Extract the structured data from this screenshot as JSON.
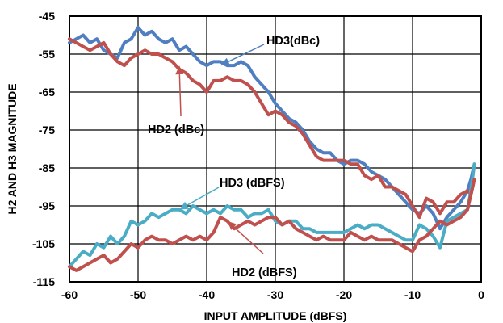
{
  "chart_data": {
    "type": "line",
    "title": "",
    "xlabel": "INPUT AMPLITUDE (dBFS)",
    "ylabel": "H2 AND H3 MAGNITUDE",
    "xlim": [
      -60,
      0
    ],
    "ylim": [
      -115,
      -45
    ],
    "x_ticks": [
      -60,
      -50,
      -40,
      -30,
      -20,
      -10,
      0
    ],
    "x_tick_labels": [
      "-60",
      "-50",
      "-40",
      "-30",
      "-20",
      "-10",
      "0"
    ],
    "y_ticks": [
      -45,
      -55,
      -65,
      -75,
      -85,
      -95,
      -105,
      -115
    ],
    "y_tick_labels": [
      "-45",
      "-55",
      "-65",
      "-75",
      "-85",
      "-95",
      "-105",
      "-115"
    ],
    "grid": true,
    "legend": "none",
    "series": [
      {
        "name": "HD3(dBc)",
        "color": "#4f7fc1",
        "points": [
          [
            -60,
            -52
          ],
          [
            -59,
            -51
          ],
          [
            -58,
            -50
          ],
          [
            -57,
            -52
          ],
          [
            -56,
            -51
          ],
          [
            -55,
            -54
          ],
          [
            -54,
            -55
          ],
          [
            -53,
            -56
          ],
          [
            -52,
            -52
          ],
          [
            -51,
            -51
          ],
          [
            -50,
            -48
          ],
          [
            -49,
            -50
          ],
          [
            -48,
            -49
          ],
          [
            -47,
            -51
          ],
          [
            -46,
            -52
          ],
          [
            -45,
            -51
          ],
          [
            -44,
            -54
          ],
          [
            -43,
            -53
          ],
          [
            -42,
            -55
          ],
          [
            -41,
            -57
          ],
          [
            -40,
            -58
          ],
          [
            -39,
            -57
          ],
          [
            -38,
            -57
          ],
          [
            -37,
            -58
          ],
          [
            -36,
            -58
          ],
          [
            -35,
            -57
          ],
          [
            -34,
            -58
          ],
          [
            -33,
            -61
          ],
          [
            -32,
            -63
          ],
          [
            -31,
            -65
          ],
          [
            -30,
            -68
          ],
          [
            -29,
            -70
          ],
          [
            -28,
            -72
          ],
          [
            -27,
            -73
          ],
          [
            -26,
            -75
          ],
          [
            -25,
            -78
          ],
          [
            -24,
            -80
          ],
          [
            -23,
            -81
          ],
          [
            -22,
            -81
          ],
          [
            -21,
            -83
          ],
          [
            -20,
            -84
          ],
          [
            -19,
            -83
          ],
          [
            -18,
            -83
          ],
          [
            -17,
            -84
          ],
          [
            -16,
            -86
          ],
          [
            -15,
            -87
          ],
          [
            -14,
            -88
          ],
          [
            -13,
            -90
          ],
          [
            -12,
            -92
          ],
          [
            -11,
            -94
          ],
          [
            -10,
            -96
          ],
          [
            -9,
            -97
          ],
          [
            -8,
            -95
          ],
          [
            -7,
            -97
          ],
          [
            -6,
            -101
          ],
          [
            -5,
            -98
          ],
          [
            -4,
            -96
          ],
          [
            -3,
            -94
          ],
          [
            -2,
            -91
          ],
          [
            -1.5,
            -88
          ],
          [
            -1,
            -84
          ]
        ]
      },
      {
        "name": "HD2 (dBc)",
        "color": "#c0504d",
        "points": [
          [
            -60,
            -51
          ],
          [
            -59,
            -52
          ],
          [
            -58,
            -53
          ],
          [
            -57,
            -54
          ],
          [
            -56,
            -53
          ],
          [
            -55,
            -52
          ],
          [
            -54,
            -55
          ],
          [
            -53,
            -57
          ],
          [
            -52,
            -58
          ],
          [
            -51,
            -56
          ],
          [
            -50,
            -55
          ],
          [
            -49,
            -54
          ],
          [
            -48,
            -55
          ],
          [
            -47,
            -55
          ],
          [
            -46,
            -56
          ],
          [
            -45,
            -57
          ],
          [
            -44,
            -59
          ],
          [
            -43,
            -60
          ],
          [
            -42,
            -62
          ],
          [
            -41,
            -63
          ],
          [
            -40,
            -65
          ],
          [
            -39,
            -62
          ],
          [
            -38,
            -62
          ],
          [
            -37,
            -61
          ],
          [
            -36,
            -62
          ],
          [
            -35,
            -62
          ],
          [
            -34,
            -63
          ],
          [
            -33,
            -65
          ],
          [
            -32,
            -68
          ],
          [
            -31,
            -71
          ],
          [
            -30,
            -70
          ],
          [
            -29,
            -71
          ],
          [
            -28,
            -73
          ],
          [
            -27,
            -74
          ],
          [
            -26,
            -76
          ],
          [
            -25,
            -79
          ],
          [
            -24,
            -82
          ],
          [
            -23,
            -83
          ],
          [
            -22,
            -83
          ],
          [
            -21,
            -83
          ],
          [
            -20,
            -83
          ],
          [
            -19,
            -84
          ],
          [
            -18,
            -84
          ],
          [
            -17,
            -87
          ],
          [
            -16,
            -88
          ],
          [
            -15,
            -87
          ],
          [
            -14,
            -90
          ],
          [
            -13,
            -90
          ],
          [
            -12,
            -91
          ],
          [
            -11,
            -92
          ],
          [
            -10,
            -95
          ],
          [
            -9,
            -98
          ],
          [
            -8,
            -93
          ],
          [
            -7,
            -94
          ],
          [
            -6,
            -97
          ],
          [
            -5,
            -94
          ],
          [
            -4,
            -94
          ],
          [
            -3,
            -92
          ],
          [
            -2,
            -91
          ],
          [
            -1.5,
            -92
          ],
          [
            -1,
            -88
          ]
        ]
      },
      {
        "name": "HD3 (dBFS)",
        "color": "#4bacc6",
        "points": [
          [
            -60,
            -111
          ],
          [
            -59,
            -109
          ],
          [
            -58,
            -107
          ],
          [
            -57,
            -108
          ],
          [
            -56,
            -105
          ],
          [
            -55,
            -106
          ],
          [
            -54,
            -103
          ],
          [
            -53,
            -105
          ],
          [
            -52,
            -103
          ],
          [
            -51,
            -99
          ],
          [
            -50,
            -100
          ],
          [
            -49,
            -99
          ],
          [
            -48,
            -97
          ],
          [
            -47,
            -98
          ],
          [
            -46,
            -97
          ],
          [
            -45,
            -96
          ],
          [
            -44,
            -96
          ],
          [
            -43,
            -97
          ],
          [
            -42,
            -95
          ],
          [
            -41,
            -96
          ],
          [
            -40,
            -97
          ],
          [
            -39,
            -96
          ],
          [
            -38,
            -97
          ],
          [
            -37,
            -95
          ],
          [
            -36,
            -96
          ],
          [
            -35,
            -96
          ],
          [
            -34,
            -98
          ],
          [
            -33,
            -97
          ],
          [
            -32,
            -97
          ],
          [
            -31,
            -96
          ],
          [
            -30,
            -99
          ],
          [
            -29,
            -100
          ],
          [
            -28,
            -99
          ],
          [
            -27,
            -99
          ],
          [
            -26,
            -101
          ],
          [
            -25,
            -101
          ],
          [
            -24,
            -102
          ],
          [
            -23,
            -102
          ],
          [
            -22,
            -102
          ],
          [
            -21,
            -102
          ],
          [
            -20,
            -102
          ],
          [
            -19,
            -101
          ],
          [
            -18,
            -100
          ],
          [
            -17,
            -101
          ],
          [
            -16,
            -100
          ],
          [
            -15,
            -100
          ],
          [
            -14,
            -101
          ],
          [
            -13,
            -102
          ],
          [
            -12,
            -103
          ],
          [
            -11,
            -104
          ],
          [
            -10,
            -104
          ],
          [
            -9,
            -100
          ],
          [
            -8,
            -101
          ],
          [
            -7,
            -103
          ],
          [
            -6,
            -106
          ],
          [
            -5,
            -99
          ],
          [
            -4,
            -98
          ],
          [
            -3,
            -97
          ],
          [
            -2,
            -96
          ],
          [
            -1.5,
            -91
          ],
          [
            -1,
            -84
          ]
        ]
      },
      {
        "name": "HD2 (dBFS)",
        "color": "#c0504d",
        "points": [
          [
            -60,
            -111
          ],
          [
            -59,
            -112
          ],
          [
            -58,
            -111
          ],
          [
            -57,
            -110
          ],
          [
            -56,
            -109
          ],
          [
            -55,
            -108
          ],
          [
            -54,
            -110
          ],
          [
            -53,
            -109
          ],
          [
            -52,
            -107
          ],
          [
            -51,
            -105
          ],
          [
            -50,
            -106
          ],
          [
            -49,
            -104
          ],
          [
            -48,
            -103
          ],
          [
            -47,
            -104
          ],
          [
            -46,
            -104
          ],
          [
            -45,
            -105
          ],
          [
            -44,
            -104
          ],
          [
            -43,
            -103
          ],
          [
            -42,
            -104
          ],
          [
            -41,
            -103
          ],
          [
            -40,
            -104
          ],
          [
            -39,
            -102
          ],
          [
            -38,
            -98
          ],
          [
            -37,
            -99
          ],
          [
            -36,
            -101
          ],
          [
            -35,
            -100
          ],
          [
            -34,
            -99
          ],
          [
            -33,
            -100
          ],
          [
            -32,
            -99
          ],
          [
            -31,
            -98
          ],
          [
            -30,
            -98
          ],
          [
            -29,
            -100
          ],
          [
            -28,
            -99
          ],
          [
            -27,
            -101
          ],
          [
            -26,
            -102
          ],
          [
            -25,
            -103
          ],
          [
            -24,
            -104
          ],
          [
            -23,
            -103
          ],
          [
            -22,
            -104
          ],
          [
            -21,
            -104
          ],
          [
            -20,
            -104
          ],
          [
            -19,
            -102
          ],
          [
            -18,
            -103
          ],
          [
            -17,
            -104
          ],
          [
            -16,
            -103
          ],
          [
            -15,
            -104
          ],
          [
            -14,
            -104
          ],
          [
            -13,
            -104
          ],
          [
            -12,
            -105
          ],
          [
            -11,
            -106
          ],
          [
            -10,
            -107
          ],
          [
            -9,
            -104
          ],
          [
            -8,
            -103
          ],
          [
            -7,
            -101
          ],
          [
            -6,
            -99
          ],
          [
            -5,
            -100
          ],
          [
            -4,
            -99
          ],
          [
            -3,
            -98
          ],
          [
            -2,
            -96
          ],
          [
            -1.5,
            -92
          ],
          [
            -1,
            -88
          ]
        ]
      }
    ],
    "annotations": [
      {
        "text": "HD3(dBc)",
        "arrow_color": "#4f7fc1",
        "points_to": [
          -38,
          -58
        ]
      },
      {
        "text": "HD2 (dBc)",
        "arrow_color": "#c0504d",
        "points_to": [
          -44,
          -58
        ]
      },
      {
        "text": "HD3 (dBFS)",
        "arrow_color": "#4bacc6",
        "points_to": [
          -44,
          -96
        ]
      },
      {
        "text": "HD2 (dBFS)",
        "arrow_color": "#c0504d",
        "points_to": [
          -37,
          -99
        ]
      }
    ]
  }
}
